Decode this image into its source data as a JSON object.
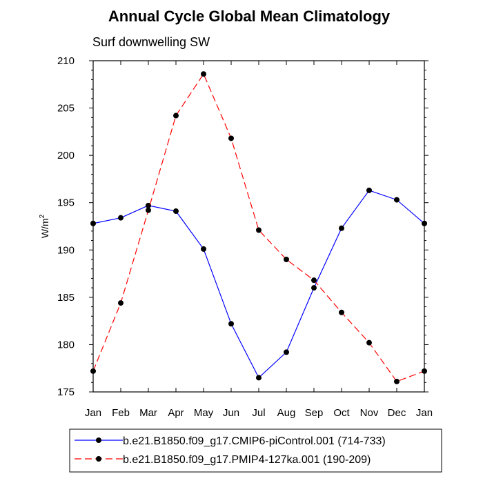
{
  "chart_data": {
    "type": "line",
    "title": "Annual Cycle Global Mean Climatology",
    "subtitle": "Surf downwelling SW",
    "ylabel_base": "W/m",
    "ylabel_sup": "2",
    "xlabel": "",
    "categories": [
      "Jan",
      "Feb",
      "Mar",
      "Apr",
      "May",
      "Jun",
      "Jul",
      "Aug",
      "Sep",
      "Oct",
      "Nov",
      "Dec",
      "Jan"
    ],
    "ylim": [
      175,
      210
    ],
    "yticks": [
      175,
      180,
      185,
      190,
      195,
      200,
      205,
      210
    ],
    "grid": false,
    "legend_position": "bottom",
    "series": [
      {
        "name": "b.e21.B1850.f09_g17.CMIP6-piControl.001 (714-733)",
        "color": "#0000ff",
        "dash": "solid",
        "values": [
          192.8,
          193.4,
          194.7,
          194.1,
          190.1,
          182.2,
          176.5,
          179.2,
          186.0,
          192.3,
          196.3,
          195.3,
          192.8
        ]
      },
      {
        "name": "b.e21.B1850.f09_g17.PMIP4-127ka.001 (190-209)",
        "color": "#ff0000",
        "dash": "dashed",
        "values": [
          177.2,
          184.4,
          194.2,
          204.2,
          208.6,
          201.8,
          192.1,
          189.0,
          186.8,
          183.4,
          180.2,
          176.1,
          177.2
        ]
      }
    ]
  }
}
